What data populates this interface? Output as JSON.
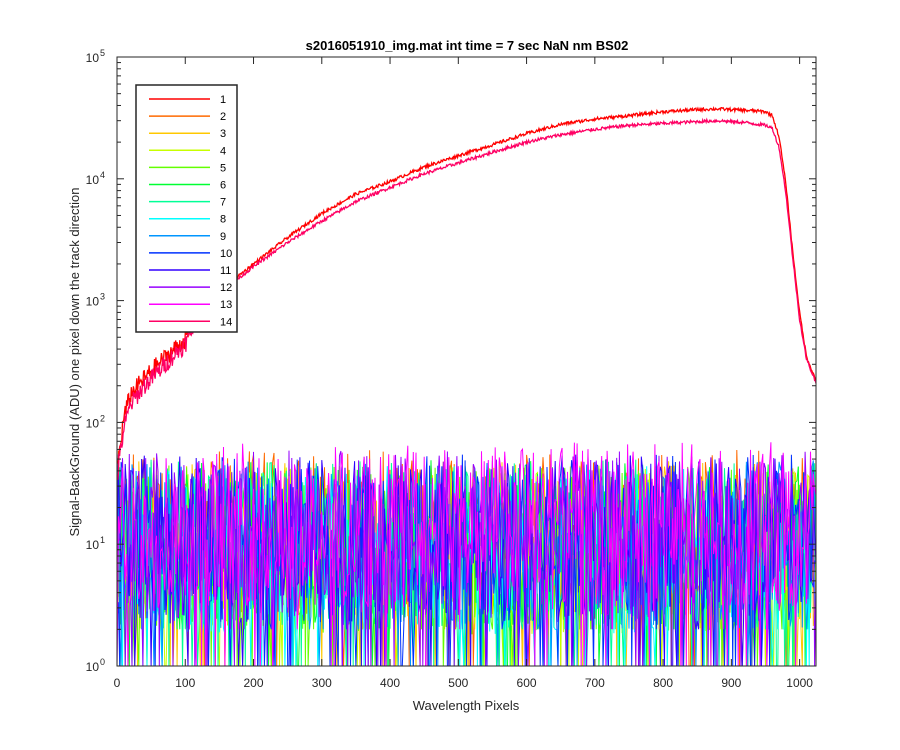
{
  "chart_data": {
    "type": "line",
    "title": "s2016051910_img.mat int time = 7 sec  NaN nm BS02",
    "xlabel": "Wavelength Pixels",
    "ylabel": "Signal-BackGround (ADU) one pixel down the track direction",
    "xlim": [
      0,
      1024
    ],
    "ylim": [
      1,
      100000
    ],
    "yscale": "log",
    "grid": false,
    "legend_position": "top-left",
    "x_ticks": [
      0,
      100,
      200,
      300,
      400,
      500,
      600,
      700,
      800,
      900,
      1000
    ],
    "y_ticks": [
      {
        "base": "10",
        "exp": "0",
        "value": 1
      },
      {
        "base": "10",
        "exp": "1",
        "value": 10
      },
      {
        "base": "10",
        "exp": "2",
        "value": 100
      },
      {
        "base": "10",
        "exp": "3",
        "value": 1000
      },
      {
        "base": "10",
        "exp": "4",
        "value": 10000
      },
      {
        "base": "10",
        "exp": "5",
        "value": 100000
      }
    ],
    "series": [
      {
        "name": "1",
        "color": "#ff0000",
        "kind": "signal",
        "x": [
          0,
          10,
          20,
          40,
          60,
          80,
          100,
          120,
          150,
          200,
          250,
          300,
          350,
          400,
          450,
          500,
          550,
          600,
          650,
          700,
          750,
          800,
          850,
          880,
          900,
          920,
          940,
          950,
          960,
          970,
          980,
          990,
          1000,
          1010,
          1020,
          1024
        ],
        "y": [
          40,
          110,
          170,
          230,
          300,
          380,
          480,
          800,
          1200,
          2000,
          3300,
          5200,
          7500,
          9500,
          12500,
          15500,
          19000,
          23500,
          28000,
          31000,
          33000,
          35500,
          37000,
          37500,
          37000,
          36500,
          36000,
          35500,
          33000,
          22000,
          9000,
          2500,
          800,
          350,
          250,
          220
        ]
      },
      {
        "name": "2",
        "color": "#ff6a00",
        "kind": "noise",
        "mean": 12
      },
      {
        "name": "3",
        "color": "#ffc800",
        "kind": "noise",
        "mean": 10
      },
      {
        "name": "4",
        "color": "#c8ff00",
        "kind": "noise",
        "mean": 9
      },
      {
        "name": "5",
        "color": "#64ff00",
        "kind": "noise",
        "mean": 9
      },
      {
        "name": "6",
        "color": "#00ff32",
        "kind": "noise",
        "mean": 10
      },
      {
        "name": "7",
        "color": "#00ff96",
        "kind": "noise",
        "mean": 10
      },
      {
        "name": "8",
        "color": "#00ffff",
        "kind": "noise",
        "mean": 9
      },
      {
        "name": "9",
        "color": "#0096ff",
        "kind": "noise",
        "mean": 10
      },
      {
        "name": "10",
        "color": "#0032ff",
        "kind": "noise",
        "mean": 11
      },
      {
        "name": "11",
        "color": "#3200ff",
        "kind": "noise",
        "mean": 11
      },
      {
        "name": "12",
        "color": "#9600ff",
        "kind": "noise",
        "mean": 12
      },
      {
        "name": "13",
        "color": "#ff00ff",
        "kind": "noise",
        "mean": 14
      },
      {
        "name": "14",
        "color": "#ff0064",
        "kind": "signal",
        "x": [
          0,
          10,
          20,
          40,
          60,
          80,
          100,
          120,
          150,
          200,
          250,
          300,
          350,
          400,
          450,
          500,
          550,
          600,
          650,
          700,
          750,
          800,
          850,
          880,
          900,
          920,
          940,
          950,
          960,
          970,
          980,
          990,
          1000,
          1010,
          1020,
          1024
        ],
        "y": [
          35,
          90,
          140,
          200,
          260,
          340,
          440,
          750,
          1150,
          1900,
          3000,
          4500,
          6500,
          8500,
          11000,
          13500,
          16500,
          20000,
          23000,
          25500,
          27500,
          28500,
          29500,
          30000,
          29500,
          29000,
          28000,
          27500,
          26000,
          18000,
          7500,
          2200,
          700,
          330,
          240,
          210
        ]
      }
    ]
  }
}
